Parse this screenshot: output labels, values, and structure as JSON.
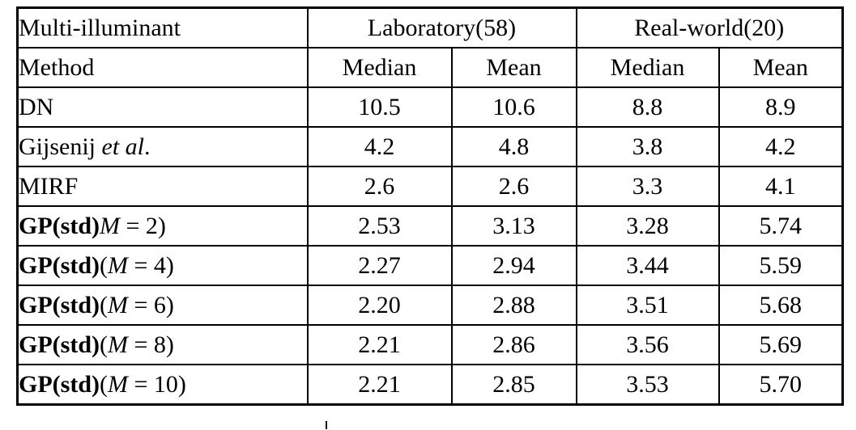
{
  "table": {
    "header": {
      "corner_label": "Multi-illuminant",
      "groups": [
        {
          "label": "Laboratory(58)",
          "span": 2
        },
        {
          "label": "Real-world(20)",
          "span": 2
        }
      ],
      "method_label": "Method",
      "metric_labels": [
        "Median",
        "Mean",
        "Median",
        "Mean"
      ]
    },
    "rows": [
      {
        "label_plain": "DN",
        "label_segments": [
          {
            "text": "DN",
            "style": "roman"
          }
        ],
        "bold_values": false,
        "values": [
          "10.5",
          "10.6",
          "8.8",
          "8.9"
        ]
      },
      {
        "label_plain": "Gijsenij et al.",
        "label_segments": [
          {
            "text": "Gijsenij ",
            "style": "roman"
          },
          {
            "text": "et al",
            "style": "italic"
          },
          {
            "text": ".",
            "style": "roman"
          }
        ],
        "bold_values": false,
        "values": [
          "4.2",
          "4.8",
          "3.8",
          "4.2"
        ]
      },
      {
        "label_plain": "MIRF",
        "label_segments": [
          {
            "text": "MIRF",
            "style": "roman"
          }
        ],
        "bold_values": false,
        "values": [
          "2.6",
          "2.6",
          "3.3",
          "4.1"
        ]
      },
      {
        "label_plain": "GP(std)M = 2)",
        "label_segments": [
          {
            "text": "GP(std)",
            "style": "bold"
          },
          {
            "text": "M",
            "style": "italic"
          },
          {
            "text": " = 2)",
            "style": "roman"
          }
        ],
        "bold_values": true,
        "values": [
          "2.53",
          "3.13",
          "3.28",
          "5.74"
        ]
      },
      {
        "label_plain": "GP(std)(M = 4)",
        "label_segments": [
          {
            "text": "GP(std)",
            "style": "bold"
          },
          {
            "text": "(",
            "style": "roman"
          },
          {
            "text": "M",
            "style": "italic"
          },
          {
            "text": " = 4)",
            "style": "roman"
          }
        ],
        "bold_values": true,
        "values": [
          "2.27",
          "2.94",
          "3.44",
          "5.59"
        ]
      },
      {
        "label_plain": "GP(std)(M = 6)",
        "label_segments": [
          {
            "text": "GP(std)",
            "style": "bold"
          },
          {
            "text": "(",
            "style": "roman"
          },
          {
            "text": "M",
            "style": "italic"
          },
          {
            "text": " = 6)",
            "style": "roman"
          }
        ],
        "bold_values": true,
        "values": [
          "2.20",
          "2.88",
          "3.51",
          "5.68"
        ]
      },
      {
        "label_plain": "GP(std)(M = 8)",
        "label_segments": [
          {
            "text": "GP(std)",
            "style": "bold"
          },
          {
            "text": "(",
            "style": "roman"
          },
          {
            "text": "M",
            "style": "italic"
          },
          {
            "text": " = 8)",
            "style": "roman"
          }
        ],
        "bold_values": true,
        "values": [
          "2.21",
          "2.86",
          "3.56",
          "5.69"
        ]
      },
      {
        "label_plain": "GP(std)(M = 10)",
        "label_segments": [
          {
            "text": "GP(std)",
            "style": "bold"
          },
          {
            "text": "(",
            "style": "roman"
          },
          {
            "text": "M",
            "style": "italic"
          },
          {
            "text": " = 10)",
            "style": "roman"
          }
        ],
        "bold_values": true,
        "values": [
          "2.21",
          "2.85",
          "3.53",
          "5.70"
        ]
      }
    ],
    "colors": {
      "text": "#000000",
      "border": "#000000",
      "background": "#ffffff"
    }
  }
}
